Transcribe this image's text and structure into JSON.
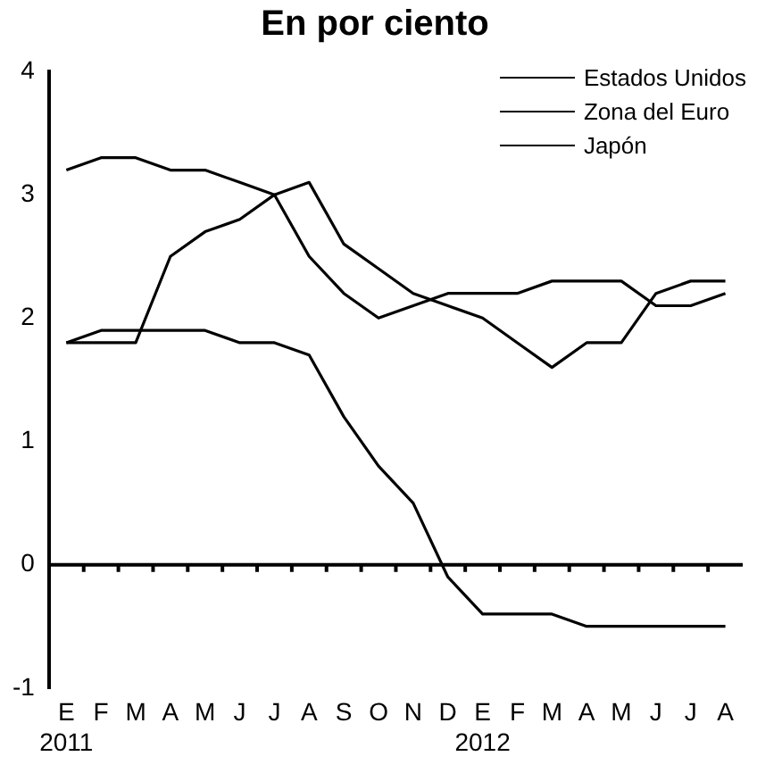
{
  "chart_data": {
    "type": "line",
    "title": "En por ciento",
    "categories": [
      "E\n2011",
      "F",
      "M",
      "A",
      "M",
      "J",
      "J",
      "A",
      "S",
      "O",
      "N",
      "D",
      "E\n2012",
      "F",
      "M",
      "A",
      "M",
      "J",
      "J",
      "A"
    ],
    "series": [
      {
        "name": "Estados Unidos",
        "color": "#000000",
        "values": [
          3.2,
          3.3,
          3.3,
          3.2,
          3.2,
          3.1,
          3.0,
          2.5,
          2.2,
          2.0,
          2.1,
          2.2,
          2.2,
          2.2,
          2.3,
          2.3,
          2.3,
          2.1,
          2.1,
          2.2
        ]
      },
      {
        "name": "Zona del Euro",
        "color": "#000000",
        "values": [
          1.8,
          1.8,
          1.8,
          2.5,
          2.7,
          2.8,
          3.0,
          3.1,
          2.6,
          2.4,
          2.2,
          2.1,
          2.0,
          1.8,
          1.6,
          1.8,
          1.8,
          2.2,
          2.3,
          2.3
        ]
      },
      {
        "name": "Japón",
        "color": "#000000",
        "values": [
          1.8,
          1.9,
          1.9,
          1.9,
          1.9,
          1.8,
          1.8,
          1.7,
          1.2,
          0.8,
          0.5,
          -0.1,
          -0.4,
          -0.4,
          -0.4,
          -0.5,
          -0.5,
          -0.5,
          -0.5,
          -0.5
        ]
      }
    ],
    "ylim": [
      -1,
      4
    ],
    "yticks": [
      -1,
      0,
      1,
      2,
      3,
      4
    ],
    "ref_lines": [
      {
        "axis": "y",
        "value": 0,
        "color": "#000000"
      }
    ],
    "grid": false,
    "legend": "top right",
    "marker": "none",
    "line_style": "solid"
  }
}
